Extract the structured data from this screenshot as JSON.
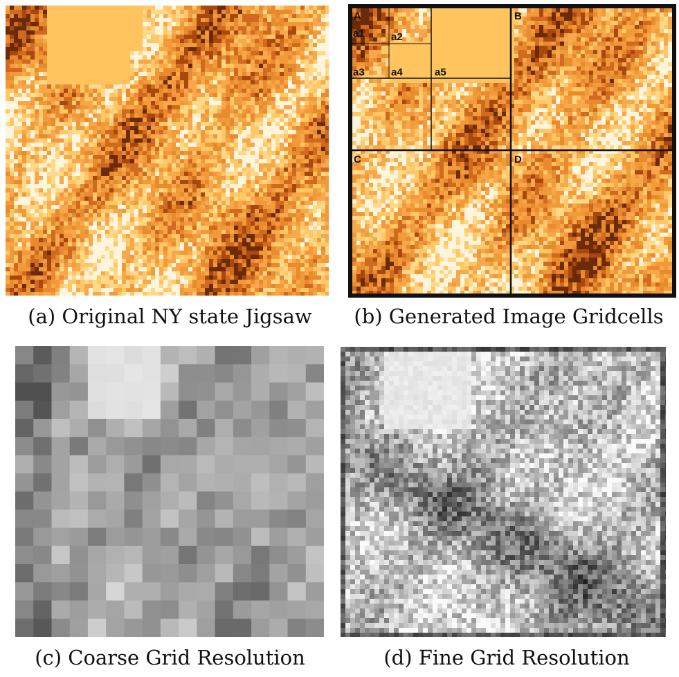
{
  "panels": {
    "a": {
      "caption": "(a) Original NY state Jigsaw"
    },
    "b": {
      "caption": "(b) Generated Image Gridcells",
      "cell_labels": {
        "A": "A",
        "B": "B",
        "C": "C",
        "D": "D",
        "a1": "a1",
        "a2": "a2",
        "a3": "a3",
        "a4": "a4",
        "a5": "a5"
      }
    },
    "c": {
      "caption": "(c) Coarse Grid Resolution"
    },
    "d": {
      "caption": "(d) Fine Grid Resolution"
    }
  },
  "colors": {
    "map_palette": [
      "#fff4dc",
      "#ffd98a",
      "#ffc766",
      "#f8a84a",
      "#f19a3a",
      "#e88a2e",
      "#d06a1e",
      "#a8480e",
      "#6b2a08"
    ],
    "flat_region": "#ffc45e",
    "grid_line": "#111111"
  }
}
